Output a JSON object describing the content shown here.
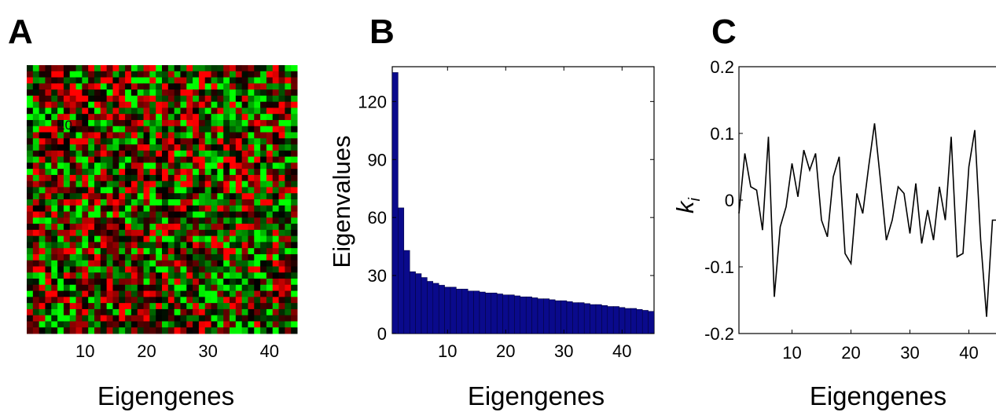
{
  "panels": {
    "a": {
      "letter": "A",
      "xlabel": "Eigengenes"
    },
    "b": {
      "letter": "B",
      "xlabel": "Eigengenes"
    },
    "c": {
      "letter": "C",
      "xlabel": "Eigengenes"
    }
  },
  "chart_data": [
    {
      "type": "heatmap",
      "panel": "A",
      "xlabel": "Eigengenes",
      "xticks": [
        10,
        20,
        30,
        40
      ],
      "xlim": [
        0.5,
        44.5
      ],
      "n_cols": 44,
      "n_rows": 44,
      "colormap": {
        "low": "#00ff00",
        "mid": "#000000",
        "high": "#ff0000"
      },
      "seed": 7,
      "note_text": "10"
    },
    {
      "type": "bar",
      "panel": "B",
      "xlabel": "Eigengenes",
      "ylabel": "Eigenvalues",
      "xlim": [
        0.5,
        45.5
      ],
      "ylim": [
        0,
        138
      ],
      "xticks": [
        10,
        20,
        30,
        40
      ],
      "yticks": [
        0,
        30,
        60,
        90,
        120
      ],
      "bar_color": "#0a0a8c",
      "values": [
        135,
        65,
        43,
        32,
        31,
        29,
        27,
        26,
        25,
        24,
        24,
        23,
        23,
        22,
        22,
        21.5,
        21,
        21,
        20.5,
        20,
        20,
        19.5,
        19,
        19,
        18.5,
        18,
        18,
        17.5,
        17,
        17,
        16.5,
        16,
        16,
        15.5,
        15,
        15,
        14.5,
        14,
        14,
        13.5,
        13,
        13,
        12.5,
        12,
        11.5
      ]
    },
    {
      "type": "line",
      "panel": "C",
      "xlabel": "Eigengenes",
      "ylabel": "k",
      "ylabel_subscript": "i",
      "xlim": [
        1,
        45
      ],
      "ylim": [
        -0.2,
        0.2
      ],
      "xticks": [
        10,
        20,
        30,
        40
      ],
      "yticks": [
        0.2,
        0.1,
        0,
        -0.1,
        -0.2
      ],
      "ytick_labels": [
        "0.2",
        "0.1",
        "0",
        "-0.1",
        "-0.2"
      ],
      "line_color": "#000000",
      "x": [
        1,
        2,
        3,
        4,
        5,
        6,
        7,
        8,
        9,
        10,
        11,
        12,
        13,
        14,
        15,
        16,
        17,
        18,
        19,
        20,
        21,
        22,
        23,
        24,
        25,
        26,
        27,
        28,
        29,
        30,
        31,
        32,
        33,
        34,
        35,
        36,
        37,
        38,
        39,
        40,
        41,
        42,
        43,
        44,
        45
      ],
      "y": [
        -0.02,
        0.07,
        0.02,
        0.015,
        -0.045,
        0.095,
        -0.145,
        -0.04,
        -0.01,
        0.055,
        0.005,
        0.075,
        0.045,
        0.07,
        -0.03,
        -0.055,
        0.035,
        0.065,
        -0.08,
        -0.095,
        0.01,
        -0.02,
        0.05,
        0.115,
        0.03,
        -0.06,
        -0.03,
        0.02,
        0.01,
        -0.05,
        0.025,
        -0.065,
        -0.015,
        -0.06,
        0.02,
        -0.03,
        0.095,
        -0.085,
        -0.08,
        0.05,
        0.105,
        -0.06,
        -0.175,
        -0.03,
        -0.03
      ]
    }
  ]
}
